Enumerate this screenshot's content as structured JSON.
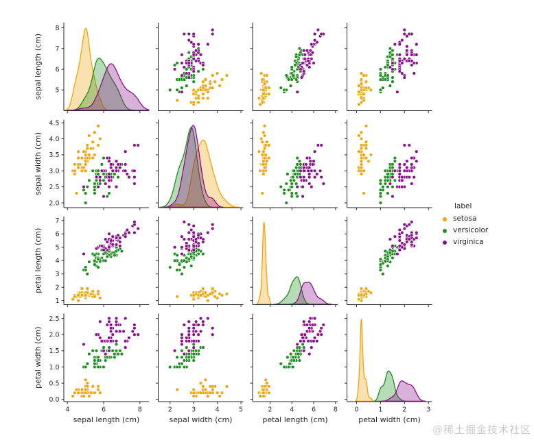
{
  "figure": {
    "background": "#ffffff",
    "watermark": "@稀土掘金技术社区",
    "watermark_color": "#cbcbcb"
  },
  "chart_data": {
    "type": "scatter",
    "layout": "pairplot 4x4 grid, scatter off-diagonal, filled KDE on diagonal, shared axes",
    "grid": false,
    "legend": {
      "title": "label",
      "position": "center right, outside plots"
    },
    "variables": [
      {
        "key": "sepal_length",
        "label": "sepal length (cm)",
        "x_range": [
          3.8,
          8.5
        ],
        "x_ticks": [
          4,
          6,
          8
        ],
        "x_tick_labels": [
          "4",
          "6",
          "8"
        ],
        "y_range": [
          4.0,
          8.25
        ],
        "y_ticks": [
          5,
          6,
          7,
          8
        ],
        "y_tick_labels": [
          "5",
          "6",
          "7",
          "8"
        ]
      },
      {
        "key": "sepal_width",
        "label": "sepal width (cm)",
        "x_range": [
          1.5,
          5.1
        ],
        "x_ticks": [
          2,
          3,
          4,
          5
        ],
        "x_tick_labels": [
          "2",
          "3",
          "4",
          "5"
        ],
        "y_range": [
          1.85,
          4.6
        ],
        "y_ticks": [
          2.0,
          2.5,
          3.0,
          3.5,
          4.0,
          4.5
        ],
        "y_tick_labels": [
          "2.0",
          "2.5",
          "3.0",
          "3.5",
          "4.0",
          "4.5"
        ]
      },
      {
        "key": "petal_length",
        "label": "petal length (cm)",
        "x_range": [
          0.4,
          8.2
        ],
        "x_ticks": [
          2,
          4,
          6,
          8
        ],
        "x_tick_labels": [
          "2",
          "4",
          "6",
          "8"
        ],
        "y_range": [
          0.7,
          7.3
        ],
        "y_ticks": [
          1,
          2,
          3,
          4,
          5,
          6,
          7
        ],
        "y_tick_labels": [
          "1",
          "2",
          "3",
          "4",
          "5",
          "6",
          "7"
        ]
      },
      {
        "key": "petal_width",
        "label": "petal width (cm)",
        "x_range": [
          -0.4,
          3.15
        ],
        "x_ticks": [
          0,
          1,
          2,
          3
        ],
        "x_tick_labels": [
          "0",
          "1",
          "2",
          "3"
        ],
        "y_range": [
          -0.07,
          2.65
        ],
        "y_ticks": [
          0.0,
          0.5,
          1.0,
          1.5,
          2.0,
          2.5
        ],
        "y_tick_labels": [
          "0.0",
          "0.5",
          "1.0",
          "1.5",
          "2.0",
          "2.5"
        ]
      }
    ],
    "point_columns": [
      "sepal_length",
      "sepal_width",
      "petal_length",
      "petal_width"
    ],
    "series": [
      {
        "name": "setosa",
        "color": "#f0a30a",
        "points": [
          [
            5.1,
            3.5,
            1.4,
            0.2
          ],
          [
            4.9,
            3.0,
            1.4,
            0.2
          ],
          [
            4.7,
            3.2,
            1.3,
            0.2
          ],
          [
            4.6,
            3.1,
            1.5,
            0.2
          ],
          [
            5.0,
            3.6,
            1.4,
            0.2
          ],
          [
            5.4,
            3.9,
            1.7,
            0.4
          ],
          [
            4.6,
            3.4,
            1.4,
            0.3
          ],
          [
            5.0,
            3.4,
            1.5,
            0.2
          ],
          [
            4.4,
            2.9,
            1.4,
            0.2
          ],
          [
            4.9,
            3.1,
            1.5,
            0.1
          ],
          [
            5.4,
            3.7,
            1.5,
            0.2
          ],
          [
            4.8,
            3.4,
            1.6,
            0.2
          ],
          [
            4.8,
            3.0,
            1.4,
            0.1
          ],
          [
            4.3,
            3.0,
            1.1,
            0.1
          ],
          [
            5.8,
            4.0,
            1.2,
            0.2
          ],
          [
            5.7,
            4.4,
            1.5,
            0.4
          ],
          [
            5.4,
            3.9,
            1.3,
            0.4
          ],
          [
            5.1,
            3.5,
            1.4,
            0.3
          ],
          [
            5.7,
            3.8,
            1.7,
            0.3
          ],
          [
            5.1,
            3.8,
            1.5,
            0.3
          ],
          [
            5.4,
            3.4,
            1.7,
            0.2
          ],
          [
            5.1,
            3.7,
            1.5,
            0.4
          ],
          [
            4.6,
            3.6,
            1.0,
            0.2
          ],
          [
            5.1,
            3.3,
            1.7,
            0.5
          ],
          [
            4.8,
            3.4,
            1.9,
            0.2
          ],
          [
            5.0,
            3.0,
            1.6,
            0.2
          ],
          [
            5.0,
            3.4,
            1.6,
            0.4
          ],
          [
            5.2,
            3.5,
            1.5,
            0.2
          ],
          [
            5.2,
            3.4,
            1.4,
            0.2
          ],
          [
            4.7,
            3.2,
            1.6,
            0.2
          ],
          [
            4.8,
            3.1,
            1.6,
            0.2
          ],
          [
            5.4,
            3.4,
            1.5,
            0.4
          ],
          [
            5.2,
            4.1,
            1.5,
            0.1
          ],
          [
            5.5,
            4.2,
            1.4,
            0.2
          ],
          [
            4.9,
            3.1,
            1.5,
            0.2
          ],
          [
            5.0,
            3.2,
            1.2,
            0.2
          ],
          [
            5.5,
            3.5,
            1.3,
            0.2
          ],
          [
            4.9,
            3.6,
            1.4,
            0.1
          ],
          [
            4.4,
            3.0,
            1.3,
            0.2
          ],
          [
            5.1,
            3.4,
            1.5,
            0.2
          ],
          [
            5.0,
            3.5,
            1.3,
            0.3
          ],
          [
            4.5,
            2.3,
            1.3,
            0.3
          ],
          [
            4.4,
            3.2,
            1.3,
            0.2
          ],
          [
            5.0,
            3.5,
            1.6,
            0.6
          ],
          [
            5.1,
            3.8,
            1.9,
            0.4
          ],
          [
            4.8,
            3.0,
            1.4,
            0.3
          ],
          [
            5.1,
            3.8,
            1.6,
            0.2
          ],
          [
            4.6,
            3.2,
            1.4,
            0.2
          ],
          [
            5.3,
            3.7,
            1.5,
            0.2
          ],
          [
            5.0,
            3.3,
            1.4,
            0.2
          ]
        ]
      },
      {
        "name": "versicolor",
        "color": "#1e8c1e",
        "points": [
          [
            7.0,
            3.2,
            4.7,
            1.4
          ],
          [
            6.4,
            3.2,
            4.5,
            1.5
          ],
          [
            6.9,
            3.1,
            4.9,
            1.5
          ],
          [
            5.5,
            2.3,
            4.0,
            1.3
          ],
          [
            6.5,
            2.8,
            4.6,
            1.5
          ],
          [
            5.7,
            2.8,
            4.5,
            1.3
          ],
          [
            6.3,
            3.3,
            4.7,
            1.6
          ],
          [
            4.9,
            2.4,
            3.3,
            1.0
          ],
          [
            6.6,
            2.9,
            4.6,
            1.3
          ],
          [
            5.2,
            2.7,
            3.9,
            1.4
          ],
          [
            5.0,
            2.0,
            3.5,
            1.0
          ],
          [
            5.9,
            3.0,
            4.2,
            1.5
          ],
          [
            6.0,
            2.2,
            4.0,
            1.0
          ],
          [
            6.1,
            2.9,
            4.7,
            1.4
          ],
          [
            5.6,
            2.9,
            3.6,
            1.3
          ],
          [
            6.7,
            3.1,
            4.4,
            1.4
          ],
          [
            5.6,
            3.0,
            4.5,
            1.5
          ],
          [
            5.8,
            2.7,
            4.1,
            1.0
          ],
          [
            6.2,
            2.2,
            4.5,
            1.5
          ],
          [
            5.6,
            2.5,
            3.9,
            1.1
          ],
          [
            5.9,
            3.2,
            4.8,
            1.8
          ],
          [
            6.1,
            2.8,
            4.0,
            1.3
          ],
          [
            6.3,
            2.5,
            4.9,
            1.5
          ],
          [
            6.1,
            2.8,
            4.7,
            1.2
          ],
          [
            6.4,
            2.9,
            4.3,
            1.3
          ],
          [
            6.6,
            3.0,
            4.4,
            1.4
          ],
          [
            6.8,
            2.8,
            4.8,
            1.4
          ],
          [
            6.7,
            3.0,
            5.0,
            1.7
          ],
          [
            6.0,
            2.9,
            4.5,
            1.5
          ],
          [
            5.7,
            2.6,
            3.5,
            1.0
          ],
          [
            5.5,
            2.4,
            3.8,
            1.1
          ],
          [
            5.5,
            2.4,
            3.7,
            1.0
          ],
          [
            5.8,
            2.7,
            3.9,
            1.2
          ],
          [
            6.0,
            2.7,
            5.1,
            1.6
          ],
          [
            5.4,
            3.0,
            4.5,
            1.5
          ],
          [
            6.0,
            3.4,
            4.5,
            1.6
          ],
          [
            6.7,
            3.1,
            4.7,
            1.5
          ],
          [
            6.3,
            2.3,
            4.4,
            1.3
          ],
          [
            5.6,
            3.0,
            4.1,
            1.3
          ],
          [
            5.5,
            2.5,
            4.0,
            1.3
          ],
          [
            5.5,
            2.6,
            4.4,
            1.2
          ],
          [
            6.1,
            3.0,
            4.6,
            1.4
          ],
          [
            5.8,
            2.6,
            4.0,
            1.2
          ],
          [
            5.0,
            2.3,
            3.3,
            1.0
          ],
          [
            5.6,
            2.7,
            4.2,
            1.3
          ],
          [
            5.7,
            3.0,
            4.2,
            1.2
          ],
          [
            5.7,
            2.9,
            4.2,
            1.3
          ],
          [
            6.2,
            2.9,
            4.3,
            1.3
          ],
          [
            5.1,
            2.5,
            3.0,
            1.1
          ],
          [
            5.7,
            2.8,
            4.1,
            1.3
          ]
        ]
      },
      {
        "name": "virginica",
        "color": "#8a0f8a",
        "points": [
          [
            6.3,
            3.3,
            6.0,
            2.5
          ],
          [
            5.8,
            2.7,
            5.1,
            1.9
          ],
          [
            7.1,
            3.0,
            5.9,
            2.1
          ],
          [
            6.3,
            2.9,
            5.6,
            1.8
          ],
          [
            6.5,
            3.0,
            5.8,
            2.2
          ],
          [
            7.6,
            3.0,
            6.6,
            2.1
          ],
          [
            4.9,
            2.5,
            4.5,
            1.7
          ],
          [
            7.3,
            2.9,
            6.3,
            1.8
          ],
          [
            6.7,
            2.5,
            5.8,
            1.8
          ],
          [
            7.2,
            3.6,
            6.1,
            2.5
          ],
          [
            6.5,
            3.2,
            5.1,
            2.0
          ],
          [
            6.4,
            2.7,
            5.3,
            1.9
          ],
          [
            6.8,
            3.0,
            5.5,
            2.1
          ],
          [
            5.7,
            2.5,
            5.0,
            2.0
          ],
          [
            5.8,
            2.8,
            5.1,
            2.4
          ],
          [
            6.4,
            3.2,
            5.3,
            2.3
          ],
          [
            6.5,
            3.0,
            5.5,
            1.8
          ],
          [
            7.7,
            3.8,
            6.7,
            2.2
          ],
          [
            7.7,
            2.6,
            6.9,
            2.3
          ],
          [
            6.0,
            2.2,
            5.0,
            1.5
          ],
          [
            6.9,
            3.2,
            5.7,
            2.3
          ],
          [
            5.6,
            2.8,
            4.9,
            2.0
          ],
          [
            7.7,
            2.8,
            6.7,
            2.0
          ],
          [
            6.3,
            2.7,
            4.9,
            1.8
          ],
          [
            6.7,
            3.3,
            5.7,
            2.1
          ],
          [
            7.2,
            3.2,
            6.0,
            1.8
          ],
          [
            6.2,
            2.8,
            4.8,
            1.8
          ],
          [
            6.1,
            3.0,
            4.9,
            1.8
          ],
          [
            6.4,
            2.8,
            5.6,
            2.1
          ],
          [
            7.2,
            3.0,
            5.8,
            1.6
          ],
          [
            7.4,
            2.8,
            6.1,
            1.9
          ],
          [
            7.9,
            3.8,
            6.4,
            2.0
          ],
          [
            6.4,
            2.8,
            5.6,
            2.2
          ],
          [
            6.3,
            2.8,
            5.1,
            1.5
          ],
          [
            6.1,
            2.6,
            5.6,
            1.4
          ],
          [
            7.7,
            3.0,
            6.1,
            2.3
          ],
          [
            6.3,
            3.4,
            5.6,
            2.4
          ],
          [
            6.4,
            3.1,
            5.5,
            1.8
          ],
          [
            6.0,
            3.0,
            4.8,
            1.8
          ],
          [
            6.9,
            3.1,
            5.4,
            2.1
          ],
          [
            6.7,
            3.1,
            5.6,
            2.4
          ],
          [
            6.9,
            3.1,
            5.1,
            2.3
          ],
          [
            5.8,
            2.7,
            5.1,
            1.9
          ],
          [
            6.8,
            3.2,
            5.9,
            2.3
          ],
          [
            6.7,
            3.3,
            5.7,
            2.5
          ],
          [
            6.7,
            3.0,
            5.2,
            2.3
          ],
          [
            6.3,
            2.5,
            5.0,
            1.9
          ],
          [
            6.5,
            3.0,
            5.2,
            2.0
          ],
          [
            6.2,
            3.4,
            5.4,
            2.3
          ],
          [
            5.9,
            3.0,
            5.1,
            1.8
          ]
        ]
      }
    ],
    "style": {
      "spine_color": "#262626",
      "tick_label_color": "#262626",
      "kde_fill_opacity": 0.32,
      "dot_radius_px": 2.4,
      "dot_edge_color": "#ffffff"
    }
  }
}
